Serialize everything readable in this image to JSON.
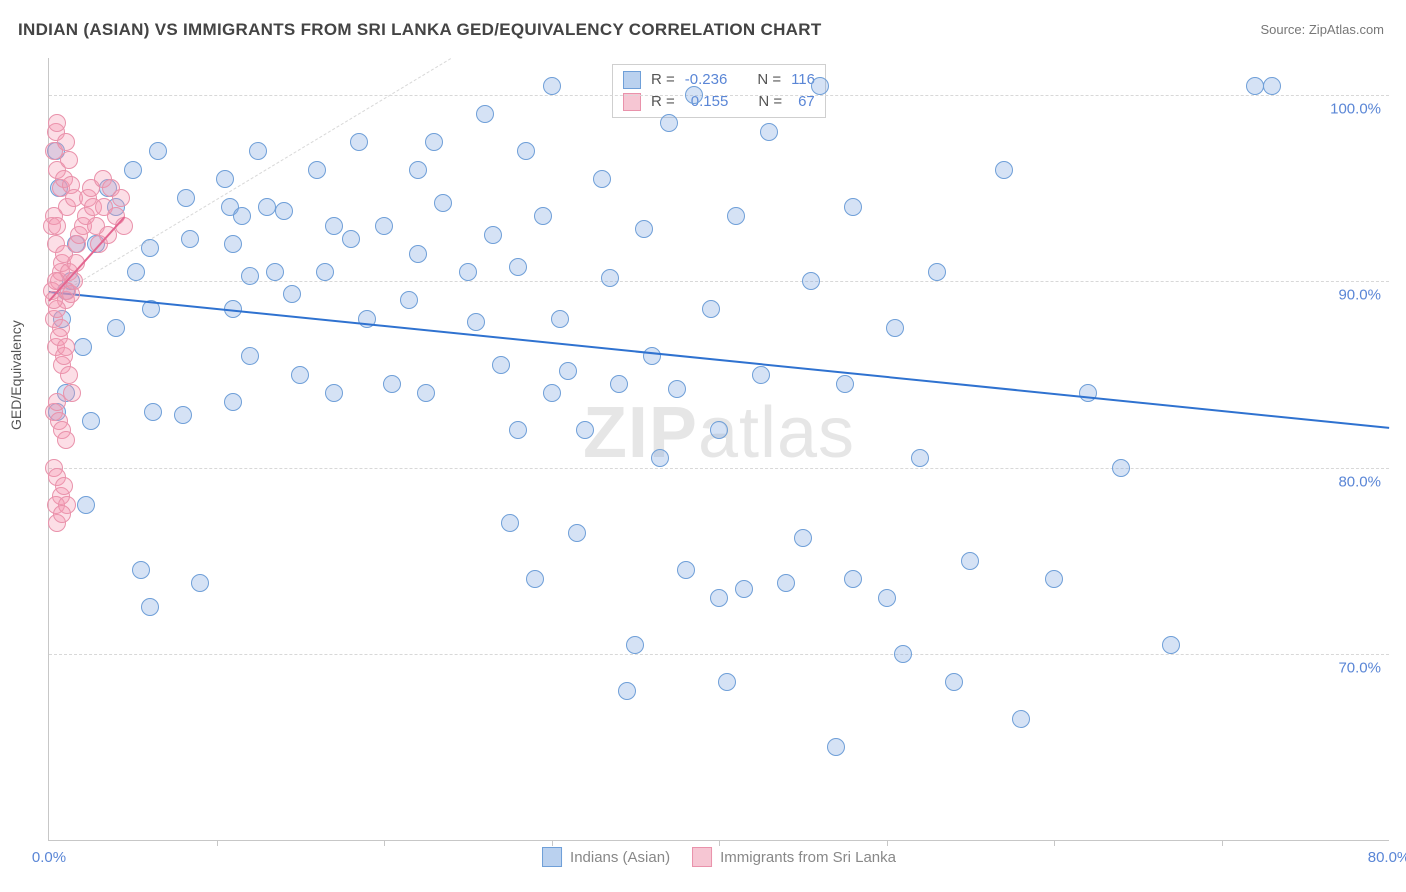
{
  "title": "INDIAN (ASIAN) VS IMMIGRANTS FROM SRI LANKA GED/EQUIVALENCY CORRELATION CHART",
  "source": "Source: ZipAtlas.com",
  "watermark_zip": "ZIP",
  "watermark_atlas": "atlas",
  "chart": {
    "type": "scatter",
    "ylabel": "GED/Equivalency",
    "xlim": [
      0,
      80
    ],
    "ylim": [
      60,
      102
    ],
    "ytick_values": [
      70,
      80,
      90,
      100
    ],
    "ytick_labels": [
      "70.0%",
      "80.0%",
      "90.0%",
      "100.0%"
    ],
    "xtick_values": [
      0,
      80
    ],
    "xtick_labels": [
      "0.0%",
      "80.0%"
    ],
    "xtick_minor": [
      10,
      20,
      30,
      40,
      50,
      60,
      70
    ],
    "background_color": "#ffffff",
    "grid_color": "#d8d8d8",
    "axis_color": "#c7c7c7",
    "diag_line": {
      "x1": 0,
      "y1": 89,
      "x2": 24,
      "y2": 102
    },
    "series": [
      {
        "name": "Indians (Asian)",
        "legend_label": "Indians (Asian)",
        "color_fill": "rgba(124,166,224,0.32)",
        "color_stroke": "#6f9fd8",
        "swatch_fill": "#bad1ef",
        "swatch_border": "#6f9fd8",
        "marker_radius": 9,
        "R_label": "R =",
        "R": "-0.236",
        "N_label": "N =",
        "N": "116",
        "regression": {
          "x1": 0,
          "y1": 89.5,
          "x2": 80,
          "y2": 82.2,
          "color": "#2f72d0",
          "width": 2
        },
        "points": [
          [
            1.0,
            89.5
          ],
          [
            1.3,
            90.0
          ],
          [
            0.8,
            88.0
          ],
          [
            1.6,
            92.0
          ],
          [
            2.0,
            86.5
          ],
          [
            1.0,
            84.0
          ],
          [
            2.2,
            78.0
          ],
          [
            2.5,
            82.5
          ],
          [
            0.5,
            83.0
          ],
          [
            0.4,
            97.0
          ],
          [
            0.6,
            95.0
          ],
          [
            2.8,
            92.0
          ],
          [
            3.5,
            95.0
          ],
          [
            4.0,
            94.0
          ],
          [
            5.0,
            96.0
          ],
          [
            5.2,
            90.5
          ],
          [
            4.0,
            87.5
          ],
          [
            6.0,
            91.8
          ],
          [
            6.1,
            88.5
          ],
          [
            6.2,
            83.0
          ],
          [
            6.5,
            97.0
          ],
          [
            8.0,
            82.8
          ],
          [
            8.2,
            94.5
          ],
          [
            8.4,
            92.3
          ],
          [
            10.5,
            95.5
          ],
          [
            10.8,
            94.0
          ],
          [
            11.0,
            92.0
          ],
          [
            11.5,
            93.5
          ],
          [
            11.0,
            88.5
          ],
          [
            12.0,
            90.3
          ],
          [
            12.5,
            97.0
          ],
          [
            13.0,
            94.0
          ],
          [
            13.5,
            90.5
          ],
          [
            14.0,
            93.8
          ],
          [
            14.5,
            89.3
          ],
          [
            15.0,
            85.0
          ],
          [
            16.0,
            96.0
          ],
          [
            16.5,
            90.5
          ],
          [
            17.0,
            93.0
          ],
          [
            18.0,
            92.3
          ],
          [
            18.5,
            97.5
          ],
          [
            19.0,
            88.0
          ],
          [
            20.0,
            93.0
          ],
          [
            20.5,
            84.5
          ],
          [
            21.5,
            89.0
          ],
          [
            22.0,
            91.5
          ],
          [
            22.5,
            84.0
          ],
          [
            23.0,
            97.5
          ],
          [
            23.5,
            94.2
          ],
          [
            25.0,
            90.5
          ],
          [
            25.5,
            87.8
          ],
          [
            26.0,
            99.0
          ],
          [
            26.5,
            92.5
          ],
          [
            27.0,
            85.5
          ],
          [
            27.5,
            77.0
          ],
          [
            28.0,
            90.8
          ],
          [
            28.5,
            97.0
          ],
          [
            29.0,
            74.0
          ],
          [
            29.5,
            93.5
          ],
          [
            30.0,
            100.5
          ],
          [
            30.5,
            88.0
          ],
          [
            31.0,
            85.2
          ],
          [
            31.5,
            76.5
          ],
          [
            32.0,
            82.0
          ],
          [
            33.0,
            95.5
          ],
          [
            33.5,
            90.2
          ],
          [
            34.5,
            68.0
          ],
          [
            35.0,
            70.5
          ],
          [
            35.5,
            92.8
          ],
          [
            36.0,
            86.0
          ],
          [
            36.5,
            80.5
          ],
          [
            37.0,
            98.5
          ],
          [
            37.5,
            84.2
          ],
          [
            38.0,
            74.5
          ],
          [
            38.5,
            100.0
          ],
          [
            39.5,
            88.5
          ],
          [
            40.0,
            82.0
          ],
          [
            40.5,
            68.5
          ],
          [
            41.0,
            93.5
          ],
          [
            41.5,
            73.5
          ],
          [
            42.5,
            85.0
          ],
          [
            43.0,
            98.0
          ],
          [
            44.0,
            73.8
          ],
          [
            45.0,
            76.2
          ],
          [
            45.5,
            90.0
          ],
          [
            46.0,
            100.5
          ],
          [
            47.0,
            65.0
          ],
          [
            47.5,
            84.5
          ],
          [
            48.0,
            94.0
          ],
          [
            50.0,
            73.0
          ],
          [
            50.5,
            87.5
          ],
          [
            52.0,
            80.5
          ],
          [
            53.0,
            90.5
          ],
          [
            54.0,
            68.5
          ],
          [
            55.0,
            75.0
          ],
          [
            57.0,
            96.0
          ],
          [
            58.0,
            66.5
          ],
          [
            60.0,
            74.0
          ],
          [
            62.0,
            84.0
          ],
          [
            64.0,
            80.0
          ],
          [
            67.0,
            70.5
          ],
          [
            72.0,
            100.5
          ],
          [
            73.0,
            100.5
          ],
          [
            28.0,
            82.0
          ],
          [
            17.0,
            84.0
          ],
          [
            11.0,
            83.5
          ],
          [
            6.0,
            72.5
          ],
          [
            5.5,
            74.5
          ],
          [
            9.0,
            73.8
          ],
          [
            22.0,
            96.0
          ],
          [
            12.0,
            86.0
          ],
          [
            30.0,
            84.0
          ],
          [
            34.0,
            84.5
          ],
          [
            40.0,
            73.0
          ],
          [
            51.0,
            70.0
          ],
          [
            48.0,
            74.0
          ]
        ]
      },
      {
        "name": "Immigrants from Sri Lanka",
        "legend_label": "Immigrants from Sri Lanka",
        "color_fill": "rgba(245,153,178,0.32)",
        "color_stroke": "#e992ab",
        "swatch_fill": "#f6c6d3",
        "swatch_border": "#e992ab",
        "marker_radius": 9,
        "R_label": "R =",
        "R": "0.155",
        "N_label": "N =",
        "N": "67",
        "regression": {
          "x1": 0,
          "y1": 89.0,
          "x2": 4.5,
          "y2": 93.5,
          "color": "#e36690",
          "width": 2
        },
        "points": [
          [
            0.3,
            97.0
          ],
          [
            0.5,
            96.0
          ],
          [
            0.4,
            98.0
          ],
          [
            0.7,
            95.0
          ],
          [
            0.9,
            95.5
          ],
          [
            1.0,
            97.5
          ],
          [
            1.1,
            94.0
          ],
          [
            1.2,
            96.5
          ],
          [
            1.3,
            95.2
          ],
          [
            1.5,
            94.5
          ],
          [
            0.2,
            93.0
          ],
          [
            0.3,
            93.5
          ],
          [
            0.4,
            92.0
          ],
          [
            0.5,
            93.0
          ],
          [
            0.6,
            90.0
          ],
          [
            0.7,
            90.5
          ],
          [
            0.8,
            91.0
          ],
          [
            0.9,
            91.5
          ],
          [
            1.0,
            89.0
          ],
          [
            1.1,
            89.5
          ],
          [
            1.2,
            90.5
          ],
          [
            1.3,
            89.3
          ],
          [
            1.5,
            90.0
          ],
          [
            1.6,
            91.0
          ],
          [
            1.7,
            92.0
          ],
          [
            1.8,
            92.5
          ],
          [
            2.0,
            93.0
          ],
          [
            2.2,
            93.5
          ],
          [
            2.3,
            94.5
          ],
          [
            2.5,
            95.0
          ],
          [
            2.6,
            94.0
          ],
          [
            2.8,
            93.0
          ],
          [
            3.0,
            92.0
          ],
          [
            3.2,
            95.5
          ],
          [
            3.3,
            94.0
          ],
          [
            3.5,
            92.5
          ],
          [
            3.7,
            95.0
          ],
          [
            4.0,
            93.5
          ],
          [
            4.3,
            94.5
          ],
          [
            4.5,
            93.0
          ],
          [
            0.3,
            88.0
          ],
          [
            0.5,
            88.5
          ],
          [
            0.7,
            87.5
          ],
          [
            0.4,
            86.5
          ],
          [
            0.6,
            87.0
          ],
          [
            0.8,
            85.5
          ],
          [
            0.9,
            86.0
          ],
          [
            1.0,
            86.5
          ],
          [
            1.2,
            85.0
          ],
          [
            1.4,
            84.0
          ],
          [
            0.3,
            83.0
          ],
          [
            0.5,
            83.5
          ],
          [
            0.6,
            82.5
          ],
          [
            0.8,
            82.0
          ],
          [
            1.0,
            81.5
          ],
          [
            0.3,
            80.0
          ],
          [
            0.5,
            79.5
          ],
          [
            0.7,
            78.5
          ],
          [
            0.4,
            78.0
          ],
          [
            0.9,
            79.0
          ],
          [
            1.1,
            78.0
          ],
          [
            0.5,
            77.0
          ],
          [
            0.8,
            77.5
          ],
          [
            0.2,
            89.5
          ],
          [
            0.3,
            89.0
          ],
          [
            0.4,
            90.0
          ],
          [
            0.5,
            98.5
          ]
        ]
      }
    ]
  }
}
